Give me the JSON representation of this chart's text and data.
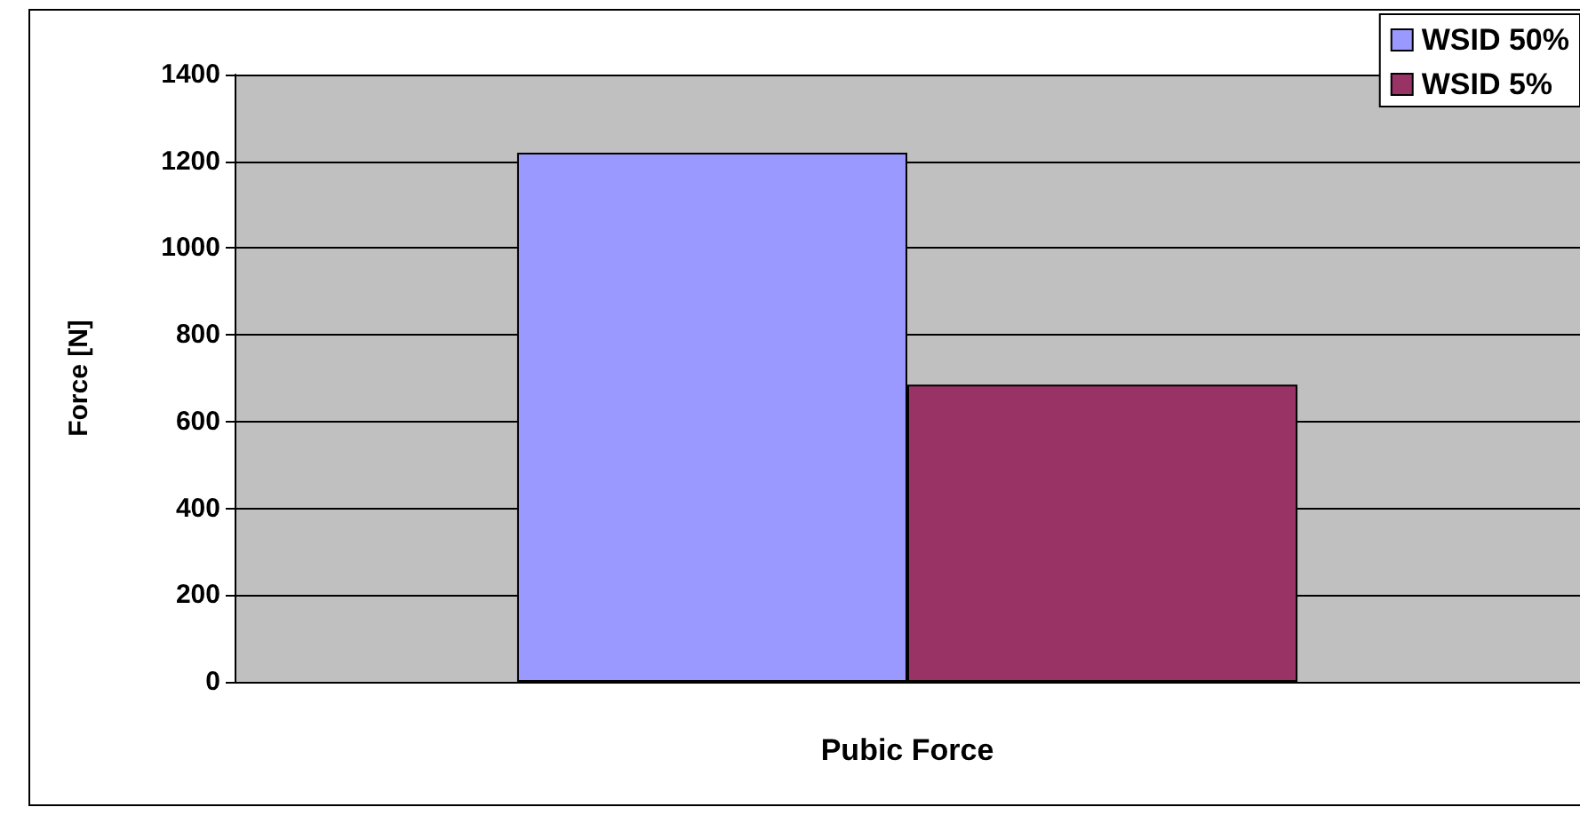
{
  "chart_data": {
    "type": "bar",
    "categories": [
      "Pubic Force"
    ],
    "ylabel": "Force [N]",
    "series": [
      {
        "name": "WSID 50%",
        "color": "#9999ff",
        "values": [
          1220
        ]
      },
      {
        "name": "WSID 5%",
        "color": "#993366",
        "values": [
          685
        ]
      }
    ],
    "ylim": [
      0,
      1400
    ],
    "yticks": [
      0,
      200,
      400,
      600,
      800,
      1000,
      1200,
      1400
    ],
    "grid": "y",
    "legend": "top right"
  }
}
